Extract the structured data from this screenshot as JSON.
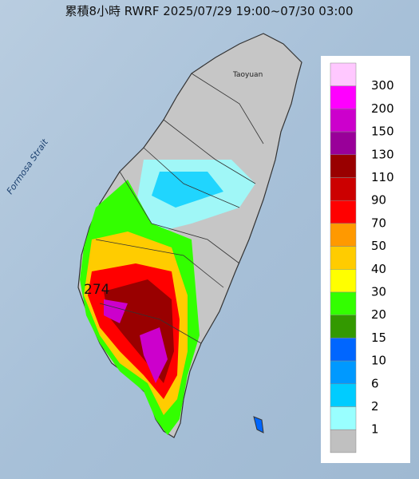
{
  "header": {
    "title": "累積8小時 RWRF 2025/07/29 19:00~07/30 03:00"
  },
  "map_labels": {
    "max_value": "274",
    "strait": "Formosa Strait",
    "city": "Taoyuan"
  },
  "legend": {
    "items": [
      {
        "label": 300,
        "color": "#ffc8ff"
      },
      {
        "label": 200,
        "color": "#ff00ff"
      },
      {
        "label": 150,
        "color": "#cc00cc"
      },
      {
        "label": 130,
        "color": "#990099"
      },
      {
        "label": 110,
        "color": "#990000"
      },
      {
        "label": 90,
        "color": "#cc0000"
      },
      {
        "label": 70,
        "color": "#ff0000"
      },
      {
        "label": 50,
        "color": "#ff9900"
      },
      {
        "label": 40,
        "color": "#ffcc00"
      },
      {
        "label": 30,
        "color": "#ffff00"
      },
      {
        "label": 20,
        "color": "#33ff00"
      },
      {
        "label": 15,
        "color": "#339900"
      },
      {
        "label": 10,
        "color": "#0066ff"
      },
      {
        "label": 6,
        "color": "#0099ff"
      },
      {
        "label": 2,
        "color": "#00ccff"
      },
      {
        "label": 1,
        "color": "#99ffff"
      }
    ],
    "base_color": "#c0c0c0"
  }
}
